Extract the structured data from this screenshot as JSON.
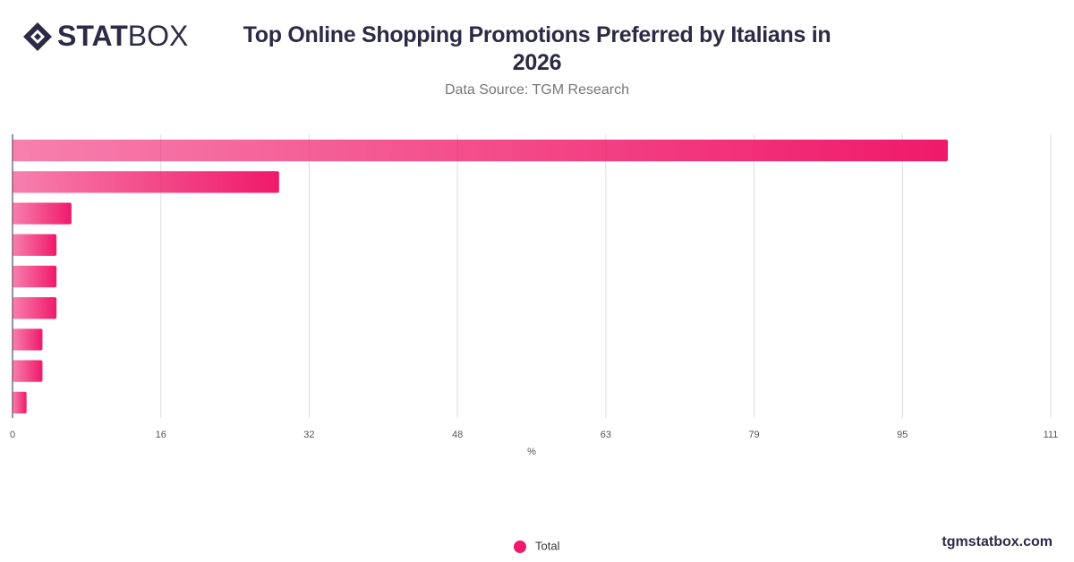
{
  "brand": [
    "STAT",
    "BOX"
  ],
  "website": "tgmstatbox.com",
  "chart_data": {
    "type": "bar",
    "orientation": "horizontal",
    "title": "Top Online Shopping Promotions Preferred by Italians in 2026",
    "subtitle": "Data Source: TGM Research",
    "x_label": "%",
    "categories": [
      null,
      null,
      null,
      null,
      null,
      null,
      null,
      null,
      null
    ],
    "series": [
      {
        "name": "Total",
        "color": "#f0196a",
        "values": [
          100,
          28.5,
          6.3,
          4.7,
          4.7,
          4.7,
          3.2,
          3.2,
          1.5
        ]
      }
    ],
    "xlim": [
      0,
      111
    ],
    "xticks": [
      0,
      {
        "value": 15.857,
        "label": "16"
      },
      {
        "value": 31.714,
        "label": "32"
      },
      {
        "value": 47.571,
        "label": "48"
      },
      {
        "value": 63.429,
        "label": "63"
      },
      {
        "value": 79.286,
        "label": "79"
      },
      {
        "value": 95.143,
        "label": "95"
      },
      111
    ],
    "grid": true
  }
}
